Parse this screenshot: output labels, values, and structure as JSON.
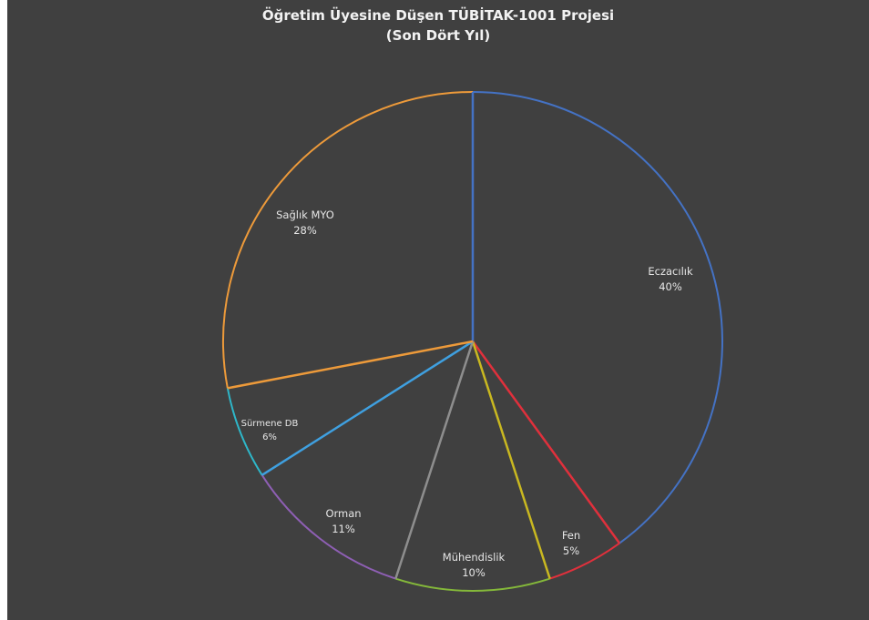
{
  "chart_data": {
    "type": "pie",
    "title": [
      "Öğretim Üyesine Düşen TÜBİTAK-1001 Projesi",
      "(Son Dört Yıl)"
    ],
    "slices": [
      {
        "label": "Eczacılık",
        "percent_label": "40%",
        "value": 40,
        "color": "#4472C4"
      },
      {
        "label": "Fen",
        "percent_label": "5%",
        "value": 5,
        "color": "#E0303C"
      },
      {
        "label": "Mühendislik",
        "percent_label": "10%",
        "value": 10,
        "color": "#C9B820"
      },
      {
        "label": "Orman",
        "percent_label": "11%",
        "value": 11,
        "color": "#8E8E8E"
      },
      {
        "label": "Sürmene DB",
        "percent_label": "6%",
        "value": 6,
        "color": "#3FA0E0"
      },
      {
        "label": "Sağlık MYO",
        "percent_label": "28%",
        "value": 28,
        "color": "#ED9A3A"
      }
    ],
    "segment_edge_colors": [
      "#4472C4",
      "#E0303C",
      "#84B83A",
      "#8E5FB4",
      "#2EB7C9",
      "#ED9A3A"
    ],
    "background": "#404040"
  }
}
